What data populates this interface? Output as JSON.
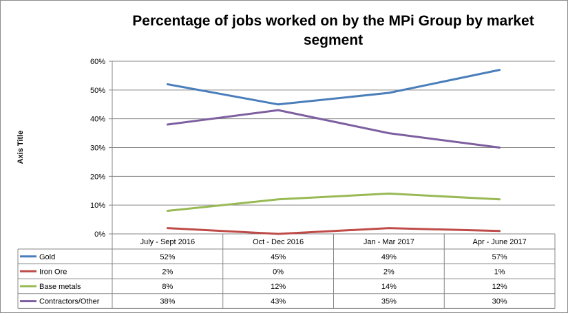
{
  "chart_data": {
    "type": "line",
    "title": "Percentage of jobs worked on by the MPi  Group by market segment",
    "title_lines": [
      "Percentage of jobs worked on by the MPi  Group by market",
      "segment"
    ],
    "ylabel": "Axis Title",
    "xlabel": "",
    "categories": [
      "July - Sept 2016",
      "Oct - Dec 2016",
      "Jan - Mar 2017",
      "Apr - June 2017"
    ],
    "ylim": [
      0,
      60
    ],
    "yticks": [
      0,
      10,
      20,
      30,
      40,
      50,
      60
    ],
    "ytick_labels": [
      "0%",
      "10%",
      "20%",
      "30%",
      "40%",
      "50%",
      "60%"
    ],
    "grid": true,
    "legend": "data-table",
    "series": [
      {
        "name": "Gold",
        "color": "#4a7ebb",
        "values": [
          52,
          45,
          49,
          57
        ],
        "labels": [
          "52%",
          "45%",
          "49%",
          "57%"
        ]
      },
      {
        "name": "Iron Ore",
        "color": "#be4b48",
        "values": [
          2,
          0,
          2,
          1
        ],
        "labels": [
          "2%",
          "0%",
          "2%",
          "1%"
        ]
      },
      {
        "name": "Base metals",
        "color": "#98b954",
        "values": [
          8,
          12,
          14,
          12
        ],
        "labels": [
          "8%",
          "12%",
          "14%",
          "12%"
        ]
      },
      {
        "name": "Contractors/Other",
        "color": "#7d5fa0",
        "values": [
          38,
          43,
          35,
          30
        ],
        "labels": [
          "38%",
          "43%",
          "35%",
          "30%"
        ]
      }
    ]
  }
}
